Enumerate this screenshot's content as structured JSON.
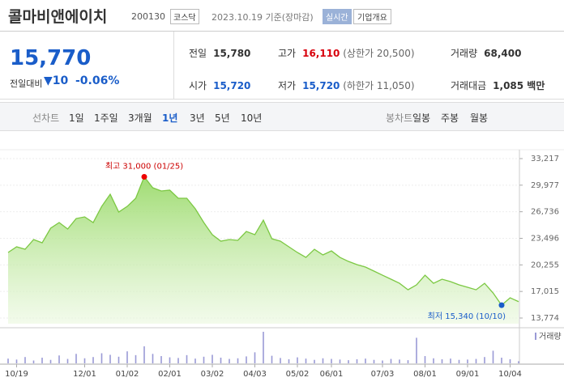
{
  "header": {
    "title": "콜마비앤에이치",
    "code": "200130",
    "market": "코스닥",
    "date": "2023.10.19 기준(장마감)",
    "realtime": "실시간",
    "overview": "기업개요"
  },
  "quote": {
    "price": "15,770",
    "change_label": "전일대비",
    "change": "10",
    "change_pct": "-0.06%"
  },
  "summary": {
    "rows": [
      [
        {
          "label": "전일",
          "value": "15,780"
        },
        {
          "label": "고가",
          "value": "16,110",
          "note": "(상한가 20,500)"
        },
        {
          "label": "거래량",
          "value": "68,400"
        }
      ],
      [
        {
          "label": "시가",
          "value": "15,720"
        },
        {
          "label": "저가",
          "value": "15,720",
          "note": "(하한가 11,050)"
        },
        {
          "label": "거래대금",
          "value": "1,085 백만"
        }
      ]
    ]
  },
  "tabs": {
    "line_label": "선차트",
    "line": [
      "1일",
      "1주일",
      "3개월",
      "1년",
      "3년",
      "5년",
      "10년"
    ],
    "candle_label": "봉차트",
    "candle": [
      "일봉",
      "주봉",
      "월봉"
    ]
  },
  "chart_data": [
    {
      "type": "area",
      "color": "#7cc843",
      "categories": [
        null,
        "10/19",
        null,
        null,
        null,
        null,
        null,
        null,
        null,
        "12/01",
        null,
        null,
        null,
        null,
        "01/02",
        null,
        null,
        null,
        null,
        "02/01",
        null,
        null,
        null,
        null,
        "03/02",
        null,
        null,
        null,
        null,
        "04/03",
        null,
        null,
        null,
        null,
        "05/02",
        null,
        null,
        null,
        "06/01",
        null,
        null,
        null,
        null,
        null,
        "07/03",
        null,
        null,
        null,
        null,
        "08/01",
        null,
        null,
        null,
        null,
        "09/01",
        null,
        null,
        null,
        null,
        "10/04",
        null
      ],
      "values": [
        21770,
        22460,
        22160,
        23350,
        22950,
        24730,
        25420,
        24630,
        25910,
        26110,
        25420,
        27390,
        28870,
        26700,
        27390,
        28380,
        31000,
        29660,
        29270,
        29370,
        28380,
        28380,
        27100,
        25420,
        23940,
        23150,
        23350,
        23250,
        24330,
        23940,
        25710,
        23440,
        23150,
        22460,
        21770,
        21170,
        22160,
        21470,
        21960,
        21170,
        20680,
        20290,
        19990,
        19500,
        19000,
        18510,
        18010,
        17220,
        17820,
        19000,
        18010,
        18510,
        18210,
        17820,
        17520,
        17220,
        18010,
        16830,
        15340,
        16240,
        15770
      ],
      "ylim": [
        13774,
        33217
      ],
      "yticks": [
        {
          "value": 13774,
          "label": "13,774"
        },
        {
          "value": 17015,
          "label": "17,015"
        },
        {
          "value": 20255,
          "label": "20,255"
        },
        {
          "value": 23496,
          "label": "23,496"
        },
        {
          "value": 26736,
          "label": "26,736"
        },
        {
          "value": 29977,
          "label": "29,977"
        },
        {
          "value": 33217,
          "label": "33,217"
        }
      ],
      "annotations": [
        "최고 31,000 (01/25)",
        "최저 15,340 (10/10)"
      ]
    },
    {
      "type": "bar",
      "ylim": [
        0,
        1000000
      ],
      "series": [
        {
          "name": "거래량",
          "color": "#9a9ad6",
          "values": [
            150000,
            120000,
            200000,
            90000,
            180000,
            110000,
            250000,
            140000,
            300000,
            160000,
            200000,
            320000,
            270000,
            210000,
            380000,
            260000,
            540000,
            300000,
            230000,
            190000,
            170000,
            260000,
            150000,
            210000,
            270000,
            180000,
            140000,
            160000,
            220000,
            350000,
            1000000,
            240000,
            170000,
            130000,
            190000,
            150000,
            110000,
            160000,
            140000,
            120000,
            100000,
            130000,
            150000,
            110000,
            90000,
            140000,
            120000,
            100000,
            810000,
            230000,
            160000,
            130000,
            150000,
            110000,
            120000,
            140000,
            200000,
            400000,
            180000,
            130000,
            68400
          ]
        }
      ]
    }
  ]
}
